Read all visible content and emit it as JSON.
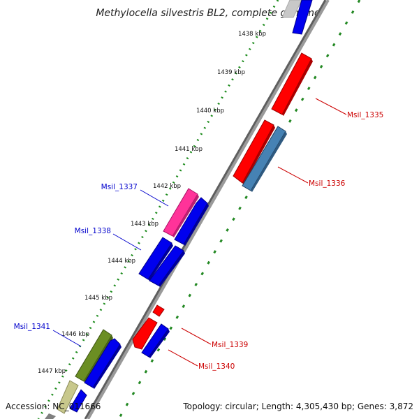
{
  "title": "Methylocella silvestris BL2, complete genome",
  "ticks": [
    "1438 kbp",
    "1439 kbp",
    "1440 kbp",
    "1441 kbp",
    "1442 kbp",
    "1443 kbp",
    "1444 kbp",
    "1445 kbp",
    "1446 kbp",
    "1447 kbp"
  ],
  "gene_labels": {
    "msil_1335": "Msil_1335",
    "msil_1336": "Msil_1336",
    "msil_1337": "Msil_1337",
    "msil_1338": "Msil_1338",
    "msil_1339": "Msil_1339",
    "msil_1340": "Msil_1340",
    "msil_1341": "Msil_1341"
  },
  "footer": {
    "accession": "Accession: NC_011666",
    "summary": "Topology: circular; Length: 4,305,430 bp; Genes: 3,872"
  },
  "colors": {
    "backbone": "#808080",
    "tick_dots": "#1a8a1a",
    "gc_dashes": "#228822",
    "forward_gene": "#0000ee",
    "reverse_gene": "#ff0000",
    "pink_gene": "#ff3399",
    "steel_gene": "#4682b4",
    "olive_gene": "#6b8e23",
    "khaki_gene": "#c8c88c",
    "label_blue": "#0000cc",
    "label_red": "#cc0000"
  }
}
